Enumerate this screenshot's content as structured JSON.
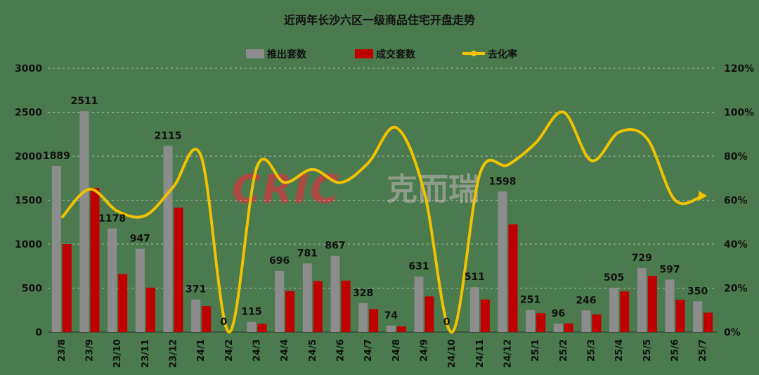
{
  "chart_data": {
    "type": "bar",
    "title": "近两年长沙六区一级商品住宅开盘走势",
    "categories": [
      "23/8",
      "23/9",
      "23/10",
      "23/11",
      "23/12",
      "24/1",
      "24/2",
      "24/3",
      "24/4",
      "24/5",
      "24/6",
      "24/7",
      "24/8",
      "24/9",
      "24/10",
      "24/11",
      "24/12",
      "25/1",
      "25/2",
      "25/3",
      "25/4",
      "25/5",
      "25/6",
      "25/7"
    ],
    "series": [
      {
        "name": "推出套数",
        "axis": "left",
        "kind": "bar",
        "color": "#8c8c8c",
        "values": [
          1889,
          2511,
          1178,
          947,
          2115,
          371,
          0,
          115,
          696,
          781,
          867,
          328,
          74,
          631,
          0,
          511,
          1598,
          251,
          96,
          246,
          505,
          729,
          597,
          350
        ]
      },
      {
        "name": "成交套数",
        "axis": "left",
        "kind": "bar",
        "color": "#c00000",
        "values": [
          1000,
          1640,
          660,
          505,
          1415,
          295,
          0,
          95,
          465,
          580,
          585,
          262,
          65,
          405,
          0,
          370,
          1225,
          215,
          98,
          200,
          462,
          640,
          368,
          220
        ]
      },
      {
        "name": "去化率",
        "axis": "right",
        "kind": "line",
        "color": "#f2c200",
        "values": [
          52,
          65,
          55,
          53,
          66,
          80,
          0,
          75,
          68,
          74,
          68,
          77,
          93,
          64,
          0,
          72,
          76,
          86,
          100,
          78,
          91,
          88,
          60,
          62
        ]
      }
    ],
    "ylim": [
      0,
      3000
    ],
    "yticks": [
      "0",
      "500",
      "1000",
      "1500",
      "2000",
      "2500",
      "3000"
    ],
    "y2lim": [
      0,
      120
    ],
    "y2ticks": [
      "0%",
      "20%",
      "40%",
      "60%",
      "80%",
      "100%",
      "120%"
    ],
    "data_labels": [
      "1889",
      "2511",
      "1178",
      "947",
      "2115",
      "371",
      "0",
      "115",
      "696",
      "781",
      "867",
      "328",
      "74",
      "631",
      "0",
      "511",
      "1598",
      "251",
      "96",
      "246",
      "505",
      "729",
      "597",
      "350"
    ],
    "legend_position": "top-center",
    "grid": true
  },
  "watermark": {
    "brand": "CRIC",
    "brand_cn": "克而瑞"
  },
  "colors": {
    "background": "#4a7a4e"
  }
}
